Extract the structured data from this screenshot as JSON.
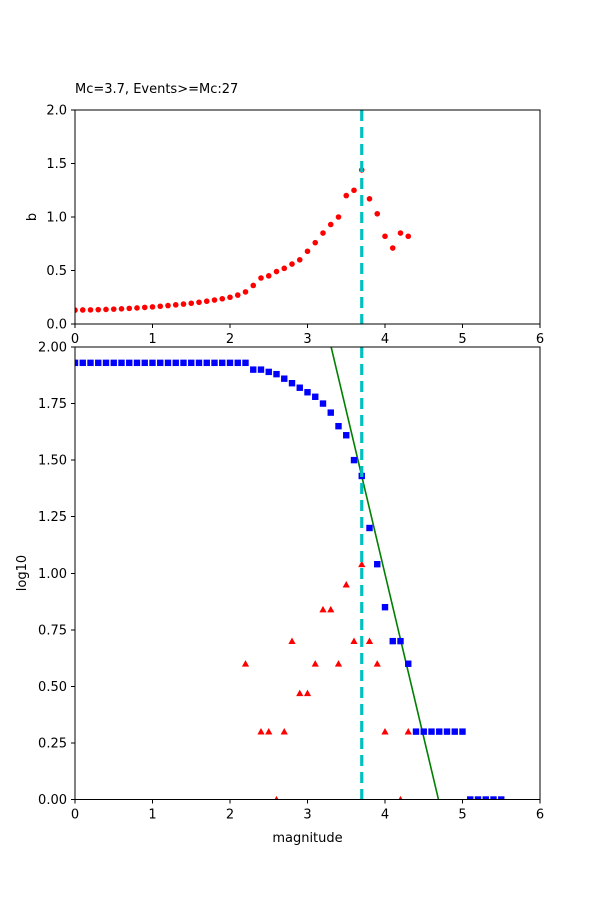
{
  "figure": {
    "background": "#ffffff",
    "axis_color": "#000000"
  },
  "colors": {
    "red": "#ff0000",
    "blue": "#0000ff",
    "green": "#008000",
    "cyan": "#00bfbf"
  },
  "chart_data": [
    {
      "id": "b-value-plot",
      "type": "scatter",
      "title": "Mc=3.7, Events>=Mc:27",
      "xlabel": "",
      "ylabel": "b",
      "xlim": [
        0,
        6
      ],
      "ylim": [
        0.0,
        2.0
      ],
      "grid": false,
      "legend": null,
      "xticks": [
        0,
        1,
        2,
        3,
        4,
        5,
        6
      ],
      "xtick_labels": [
        "0",
        "1",
        "2",
        "3",
        "4",
        "5",
        "6"
      ],
      "yticks": [
        0.0,
        0.5,
        1.0,
        1.5,
        2.0
      ],
      "ytick_labels": [
        "0.0",
        "0.5",
        "1.0",
        "1.5",
        "2.0"
      ],
      "vline": {
        "x": 3.7,
        "color": "#00bfbf",
        "style": "dashed"
      },
      "series": [
        {
          "name": "b-vs-cutoff-magnitude",
          "marker": "circle",
          "color": "#ff0000",
          "x": [
            0.0,
            0.1,
            0.2,
            0.3,
            0.4,
            0.5,
            0.6,
            0.7,
            0.8,
            0.9,
            1.0,
            1.1,
            1.2,
            1.3,
            1.4,
            1.5,
            1.6,
            1.7,
            1.8,
            1.9,
            2.0,
            2.1,
            2.2,
            2.3,
            2.4,
            2.5,
            2.6,
            2.7,
            2.8,
            2.9,
            3.0,
            3.1,
            3.2,
            3.3,
            3.4,
            3.5,
            3.6,
            3.7,
            3.8,
            3.9,
            4.0,
            4.1,
            4.2,
            4.3
          ],
          "y": [
            0.13,
            0.131,
            0.132,
            0.134,
            0.136,
            0.139,
            0.142,
            0.146,
            0.15,
            0.155,
            0.16,
            0.166,
            0.172,
            0.179,
            0.186,
            0.194,
            0.203,
            0.213,
            0.224,
            0.236,
            0.25,
            0.27,
            0.3,
            0.36,
            0.43,
            0.45,
            0.49,
            0.52,
            0.56,
            0.6,
            0.68,
            0.76,
            0.85,
            0.93,
            1.0,
            1.2,
            1.25,
            1.44,
            1.17,
            1.03,
            0.82,
            0.71,
            0.85,
            0.82
          ]
        }
      ]
    },
    {
      "id": "fmd-plot",
      "type": "scatter",
      "title": "",
      "xlabel": "magnitude",
      "ylabel": "log10",
      "xlim": [
        0,
        6
      ],
      "ylim": [
        0.0,
        2.0
      ],
      "grid": false,
      "legend": null,
      "xticks": [
        0,
        1,
        2,
        3,
        4,
        5,
        6
      ],
      "xtick_labels": [
        "0",
        "1",
        "2",
        "3",
        "4",
        "5",
        "6"
      ],
      "yticks": [
        0.0,
        0.25,
        0.5,
        0.75,
        1.0,
        1.25,
        1.5,
        1.75,
        2.0
      ],
      "ytick_labels": [
        "0.00",
        "0.25",
        "0.50",
        "0.75",
        "1.00",
        "1.25",
        "1.50",
        "1.75",
        "2.00"
      ],
      "vline": {
        "x": 3.7,
        "color": "#00bfbf",
        "style": "dashed"
      },
      "series": [
        {
          "name": "gutenberg-richter-fit-line",
          "marker": "line",
          "color": "#008000",
          "x": [
            3.305,
            4.69
          ],
          "y": [
            2.0,
            0.0
          ]
        },
        {
          "name": "cumulative-event-counts",
          "marker": "square",
          "color": "#0000ff",
          "x": [
            0.0,
            0.1,
            0.2,
            0.3,
            0.4,
            0.5,
            0.6,
            0.7,
            0.8,
            0.9,
            1.0,
            1.1,
            1.2,
            1.3,
            1.4,
            1.5,
            1.6,
            1.7,
            1.8,
            1.9,
            2.0,
            2.1,
            2.2,
            2.3,
            2.4,
            2.5,
            2.6,
            2.7,
            2.8,
            2.9,
            3.0,
            3.1,
            3.2,
            3.3,
            3.4,
            3.5,
            3.6,
            3.7,
            3.8,
            3.9,
            4.0,
            4.1,
            4.2,
            4.3,
            4.4,
            4.5,
            4.6,
            4.7,
            4.8,
            4.9,
            5.0,
            5.1,
            5.2,
            5.3,
            5.4,
            5.5
          ],
          "y": [
            1.93,
            1.93,
            1.93,
            1.93,
            1.93,
            1.93,
            1.93,
            1.93,
            1.93,
            1.93,
            1.93,
            1.93,
            1.93,
            1.93,
            1.93,
            1.93,
            1.93,
            1.93,
            1.93,
            1.93,
            1.93,
            1.93,
            1.93,
            1.9,
            1.9,
            1.89,
            1.88,
            1.86,
            1.84,
            1.82,
            1.8,
            1.78,
            1.75,
            1.71,
            1.65,
            1.61,
            1.5,
            1.43,
            1.2,
            1.04,
            0.85,
            0.7,
            0.7,
            0.6,
            0.3,
            0.3,
            0.3,
            0.3,
            0.3,
            0.3,
            0.3,
            0.0,
            0.0,
            0.0,
            0.0,
            0.0
          ]
        },
        {
          "name": "incremental-event-counts",
          "marker": "triangle",
          "color": "#ff0000",
          "x": [
            2.2,
            2.4,
            2.5,
            2.6,
            2.7,
            2.8,
            2.9,
            3.0,
            3.1,
            3.2,
            3.3,
            3.4,
            3.5,
            3.6,
            3.7,
            3.8,
            3.9,
            4.0,
            4.2,
            4.3
          ],
          "y": [
            0.6,
            0.3,
            0.3,
            0.0,
            0.3,
            0.7,
            0.47,
            0.47,
            0.6,
            0.84,
            0.84,
            0.6,
            0.95,
            0.7,
            1.04,
            0.7,
            0.6,
            0.3,
            0.0,
            0.3
          ]
        }
      ]
    }
  ]
}
